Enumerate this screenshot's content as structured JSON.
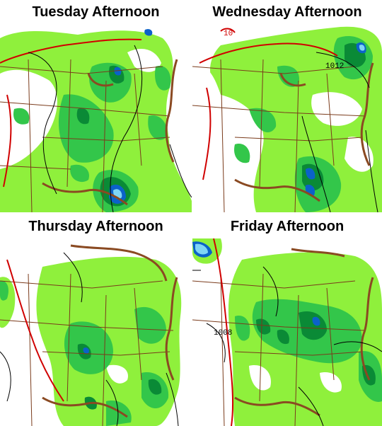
{
  "colors": {
    "precip_light": "#8ff03c",
    "precip_medium": "#33c64a",
    "precip_heavy": "#0a8a36",
    "precip_very_heavy": "#0b62c9",
    "precip_extreme": "#7fd5f5",
    "state_lines": "#7a3b1b",
    "coastline": "#8a4a22",
    "fronts_isobar_red": "#d00000",
    "isobar_black": "#000000",
    "background": "#ffffff"
  },
  "panels": [
    {
      "title": "Tuesday Afternoon",
      "pressure_labels": []
    },
    {
      "title": "Wednesday Afternoon",
      "pressure_labels": [
        {
          "text": "1012"
        },
        {
          "text": "10",
          "color": "red"
        }
      ]
    },
    {
      "title": "Thursday Afternoon",
      "pressure_labels": []
    },
    {
      "title": "Friday Afternoon",
      "pressure_labels": [
        {
          "text": "1008"
        }
      ]
    }
  ]
}
